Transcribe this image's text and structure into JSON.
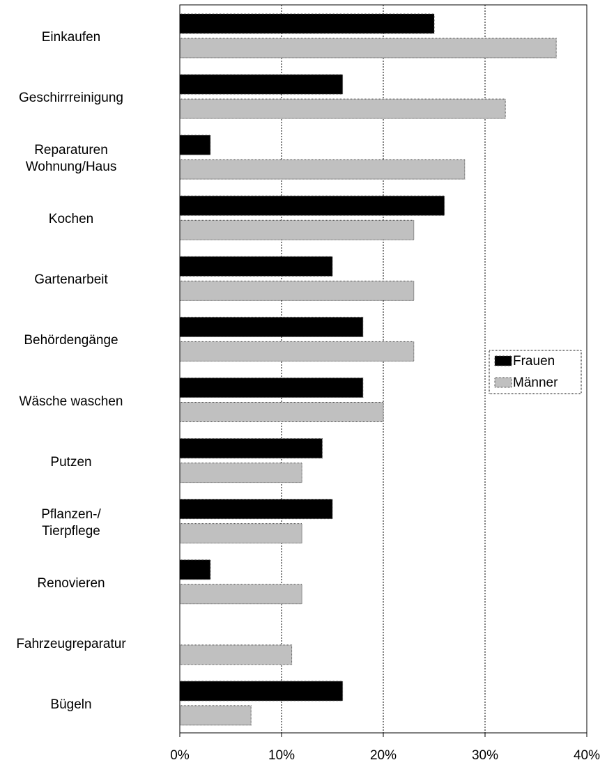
{
  "chart_data": {
    "type": "bar",
    "orientation": "horizontal",
    "categories": [
      "Einkaufen",
      "Geschirrreinigung",
      "Reparaturen\nWohnung/Haus",
      "Kochen",
      "Gartenarbeit",
      "Behördengänge",
      "Wäsche waschen",
      "Putzen",
      "Pflanzen-/\nTierpflege",
      "Renovieren",
      "Fahrzeugreparatur",
      "Bügeln"
    ],
    "series": [
      {
        "name": "Frauen",
        "color": "#000000",
        "values": [
          25,
          16,
          3,
          26,
          15,
          18,
          18,
          14,
          15,
          3,
          0,
          16
        ]
      },
      {
        "name": "Männer",
        "color": "#c0c0c0",
        "values": [
          37,
          32,
          28,
          23,
          23,
          23,
          20,
          12,
          12,
          12,
          11,
          7
        ]
      }
    ],
    "xlim": [
      0,
      40
    ],
    "xticks": [
      {
        "value": 0,
        "label": "0%"
      },
      {
        "value": 10,
        "label": "10%"
      },
      {
        "value": 20,
        "label": "20%"
      },
      {
        "value": 30,
        "label": "30%"
      },
      {
        "value": 40,
        "label": "40%"
      }
    ],
    "grid": true,
    "legend": "right"
  }
}
